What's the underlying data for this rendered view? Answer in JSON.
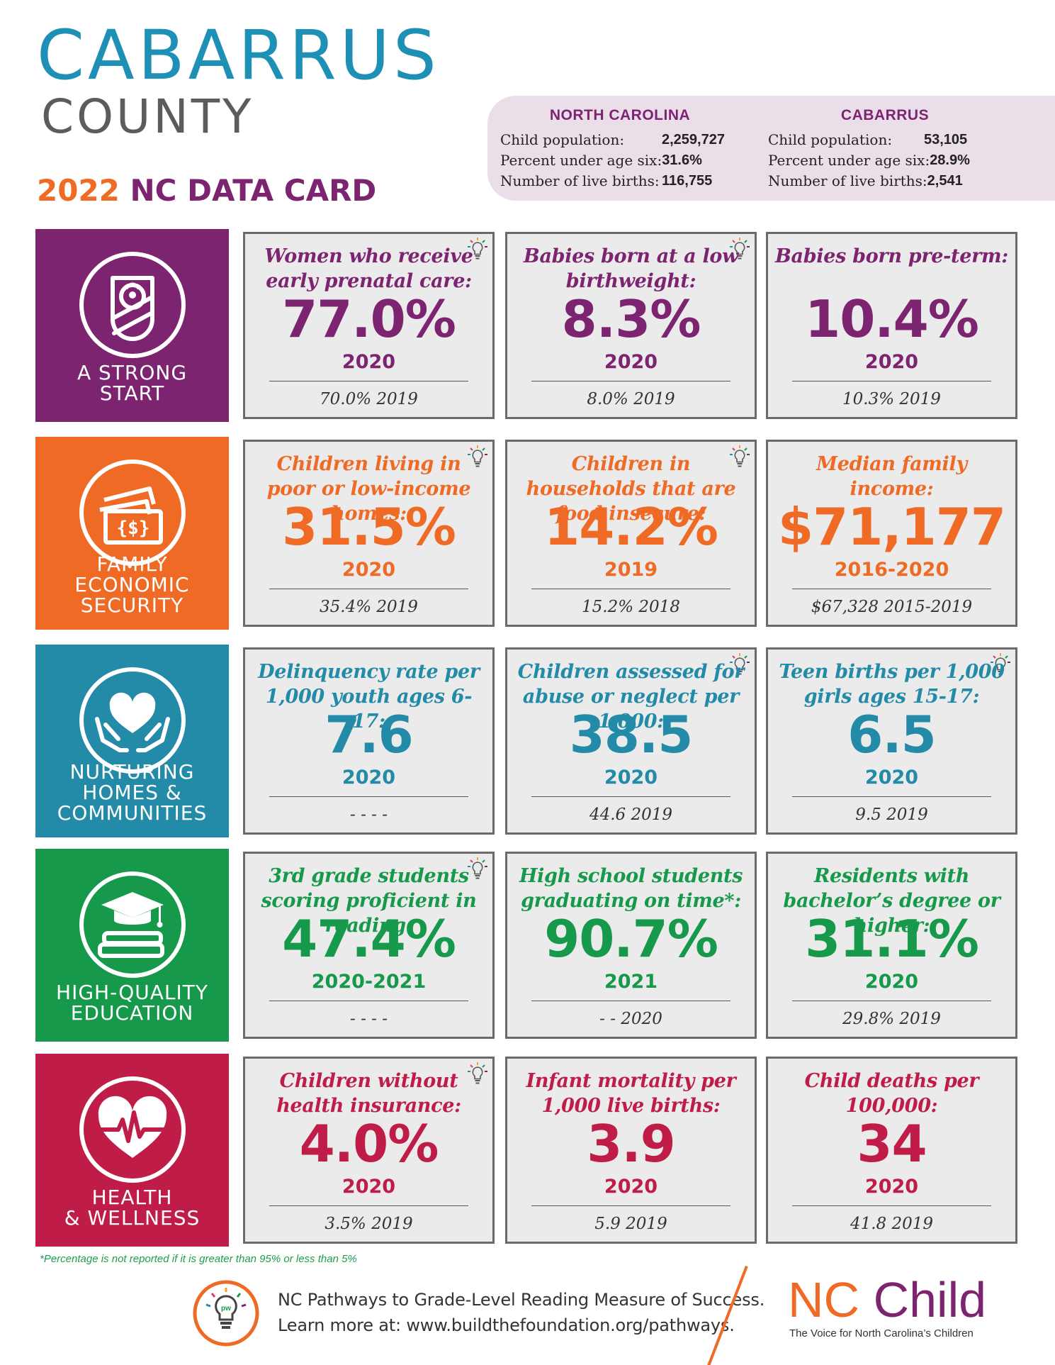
{
  "header": {
    "title": "CABARRUS",
    "subtitle": "COUNTY",
    "card_year": "2022",
    "card_label": "NC DATA CARD"
  },
  "stats": {
    "nc": {
      "heading": "NORTH CAROLINA",
      "rows": [
        {
          "label": "Child population:",
          "value": "2,259,727"
        },
        {
          "label": "Percent under age six:",
          "value": "31.6%"
        },
        {
          "label": "Number of live births:",
          "value": "116,755"
        }
      ]
    },
    "county": {
      "heading": "CABARRUS",
      "rows": [
        {
          "label": "Child population:",
          "value": "53,105"
        },
        {
          "label": "Percent under age six:",
          "value": "28.9%"
        },
        {
          "label": "Number of live births:",
          "value": "2,541"
        }
      ]
    }
  },
  "sections": [
    {
      "label_lines": [
        "A STRONG",
        "START"
      ],
      "color": "#7d2470",
      "icon": "baby-icon",
      "cards": [
        {
          "title": "Women who receive early prenatal care:",
          "value": "77.0%",
          "year": "2020",
          "prev": "70.0%  2019",
          "bulb": true
        },
        {
          "title": "Babies born at a low birthweight:",
          "value": "8.3%",
          "year": "2020",
          "prev": "8.0%  2019",
          "bulb": true
        },
        {
          "title": "Babies born pre-term:",
          "value": "10.4%",
          "year": "2020",
          "prev": "10.3%  2019",
          "bulb": false
        }
      ]
    },
    {
      "label_lines": [
        "FAMILY",
        "ECONOMIC",
        "SECURITY"
      ],
      "color": "#ef6a24",
      "icon": "money-icon",
      "cards": [
        {
          "title": "Children living in poor or low-income homes:",
          "value": "31.5%",
          "year": "2020",
          "prev": "35.4%  2019",
          "bulb": true
        },
        {
          "title": "Children in households that are food insecure:",
          "value": "14.2%",
          "year": "2019",
          "prev": "15.2%  2018",
          "bulb": true
        },
        {
          "title": "Median family income:",
          "value": "$71,177",
          "year": "2016-2020",
          "prev": "$67,328  2015-2019",
          "bulb": false
        }
      ]
    },
    {
      "label_lines": [
        "NURTURING",
        "HOMES &",
        "COMMUNITIES"
      ],
      "color": "#238aa8",
      "icon": "heart-hands-icon",
      "cards": [
        {
          "title": "Delinquency rate per 1,000 youth ages 6-17:",
          "value": "7.6",
          "year": "2020",
          "prev": "- -  - -",
          "bulb": false
        },
        {
          "title": "Children assessed for abuse or neglect per 1,000:",
          "value": "38.5",
          "year": "2020",
          "prev": "44.6  2019",
          "bulb": true
        },
        {
          "title": "Teen births per 1,000 girls ages 15-17:",
          "value": "6.5",
          "year": "2020",
          "prev": "9.5  2019",
          "bulb": true
        }
      ]
    },
    {
      "label_lines": [
        "HIGH-QUALITY",
        "EDUCATION"
      ],
      "color": "#16994a",
      "icon": "graduation-cap-icon",
      "cards": [
        {
          "title": "3rd grade students scoring proficient in reading:",
          "value": "47.4%",
          "year": "2020-2021",
          "prev": "- -  - -",
          "bulb": true
        },
        {
          "title": "High school students graduating on time*:",
          "value": "90.7%",
          "year": "2021",
          "prev": "- -  2020",
          "bulb": false
        },
        {
          "title": "Residents with bachelor’s degree or higher:",
          "value": "31.1%",
          "year": "2020",
          "prev": "29.8%  2019",
          "bulb": false
        }
      ]
    },
    {
      "label_lines": [
        "HEALTH",
        "& WELLNESS"
      ],
      "color": "#bf1d48",
      "icon": "heartbeat-icon",
      "cards": [
        {
          "title": "Children without health insurance:",
          "value": "4.0%",
          "year": "2020",
          "prev": "3.5%  2019",
          "bulb": true
        },
        {
          "title": "Infant mortality per 1,000 live births:",
          "value": "3.9",
          "year": "2020",
          "prev": "5.9  2019",
          "bulb": false
        },
        {
          "title": "Child deaths per 100,000:",
          "value": "34",
          "year": "2020",
          "prev": "41.8  2019",
          "bulb": false
        }
      ]
    }
  ],
  "footnote": "*Percentage is not reported if it is greater than 95% or less than 5%",
  "footer": {
    "line1": "NC Pathways to Grade-Level Reading Measure of Success.",
    "line2": "Learn more at: www.buildthefoundation.org/pathways.",
    "logo_text": "pw",
    "brand_nc": "NC",
    "brand_child": "Child",
    "tagline": "The Voice for North Carolina’s Children"
  }
}
